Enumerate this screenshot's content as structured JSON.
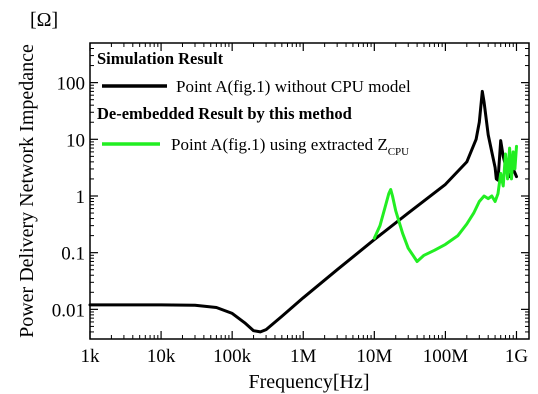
{
  "chart_data": {
    "type": "line",
    "title": "",
    "xlabel": "Frequency[Hz]",
    "ylabel": "Power Delivery Network Impedance",
    "y_unit": "[Ω]",
    "x_scale": "log",
    "y_scale": "log",
    "xlim": [
      1000,
      1500000000
    ],
    "ylim": [
      0.003,
      500
    ],
    "x_ticks": [
      {
        "value": 1000,
        "label": "1k"
      },
      {
        "value": 10000,
        "label": "10k"
      },
      {
        "value": 100000,
        "label": "100k"
      },
      {
        "value": 1000000,
        "label": "1M"
      },
      {
        "value": 10000000,
        "label": "10M"
      },
      {
        "value": 100000000,
        "label": "100M"
      },
      {
        "value": 1000000000,
        "label": "1G"
      }
    ],
    "y_ticks": [
      {
        "value": 0.01,
        "label": "0.01"
      },
      {
        "value": 0.1,
        "label": "0.1"
      },
      {
        "value": 1,
        "label": "1"
      },
      {
        "value": 10,
        "label": "10"
      },
      {
        "value": 100,
        "label": "100"
      }
    ],
    "grid": false,
    "legend_position": "top-left",
    "legend_groups": [
      {
        "heading": "Simulation Result",
        "series_index": 0
      },
      {
        "heading": "De-embedded Result by this method",
        "series_index": 1
      }
    ],
    "series": [
      {
        "name": "Point A(fig.1) without CPU model",
        "color": "#000000",
        "x": [
          1000,
          10000,
          30000,
          60000,
          100000,
          150000,
          200000,
          250000,
          300000,
          500000,
          1000000,
          3000000,
          10000000,
          30000000,
          100000000,
          200000000,
          270000000,
          300000000,
          330000000,
          350000000,
          400000000,
          450000000,
          500000000,
          520000000,
          550000000,
          600000000,
          650000000,
          700000000,
          750000000,
          800000000,
          900000000,
          1000000000
        ],
        "y": [
          0.012,
          0.012,
          0.0118,
          0.0108,
          0.0085,
          0.0058,
          0.0042,
          0.004,
          0.0044,
          0.0075,
          0.016,
          0.05,
          0.17,
          0.5,
          1.6,
          4.0,
          10,
          20,
          70,
          45,
          12,
          6,
          3.2,
          2.0,
          1.9,
          9.5,
          5,
          3.5,
          2.5,
          2.2,
          3.0,
          2.2
        ]
      },
      {
        "name": "Point A(fig.1) using extracted Z",
        "name_subscript": "CPU",
        "color": "#22ee22",
        "x": [
          10000000,
          12000000,
          14000000,
          16000000,
          17000000,
          18000000,
          20000000,
          25000000,
          30000000,
          35000000,
          40000000,
          50000000,
          70000000,
          100000000,
          150000000,
          200000000,
          250000000,
          300000000,
          350000000,
          400000000,
          450000000,
          500000000,
          550000000,
          600000000,
          650000000,
          700000000,
          750000000,
          800000000,
          850000000,
          900000000,
          950000000,
          1000000000
        ],
        "y": [
          0.18,
          0.3,
          0.6,
          1.1,
          1.3,
          1.0,
          0.55,
          0.22,
          0.12,
          0.09,
          0.07,
          0.09,
          0.11,
          0.14,
          0.2,
          0.32,
          0.5,
          0.8,
          1.0,
          0.9,
          1.0,
          0.8,
          1.1,
          2.5,
          1.5,
          5.5,
          2.0,
          7.0,
          2.0,
          6.0,
          3.0,
          7.5
        ]
      }
    ]
  }
}
